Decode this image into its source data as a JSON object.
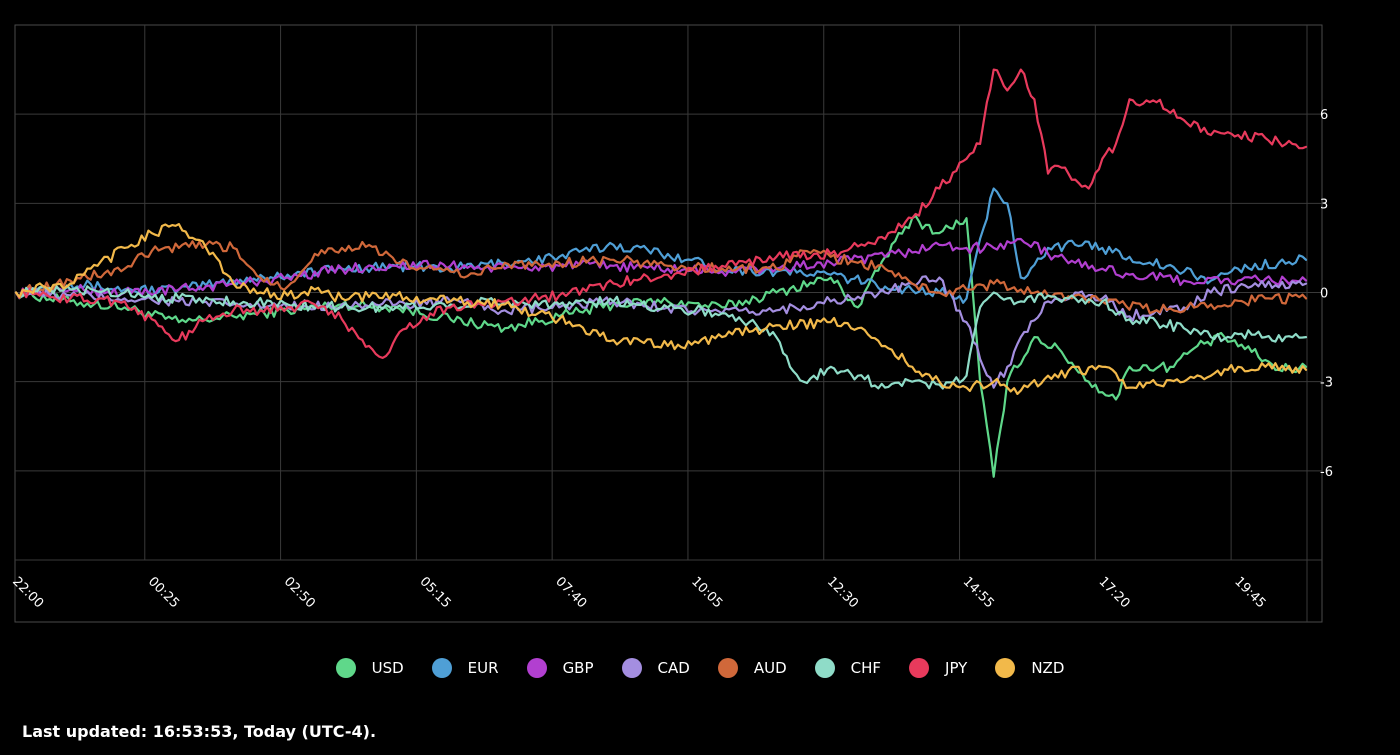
{
  "chart_data": {
    "type": "line",
    "title": "",
    "xlabel": "",
    "ylabel": "",
    "ylim": [
      -9,
      9
    ],
    "yticks": [
      6,
      3,
      0,
      -3,
      -6
    ],
    "ytick_labels": [
      "6",
      "3",
      "0",
      "-3",
      "-6"
    ],
    "xlim": [
      0,
      95
    ],
    "x_tick_positions": [
      0,
      10,
      20,
      30,
      40,
      50,
      60,
      70,
      80,
      90
    ],
    "categories": [
      "22:00",
      "00:25",
      "02:50",
      "05:15",
      "07:40",
      "10:05",
      "12:30",
      "14:55",
      "17:20",
      "19:45"
    ],
    "legend_position": "bottom-center",
    "series": [
      {
        "name": "USD",
        "color": "#5fd88a",
        "anchors": [
          [
            0,
            0
          ],
          [
            4,
            -0.3
          ],
          [
            8,
            -0.5
          ],
          [
            12,
            -1.0
          ],
          [
            16,
            -0.8
          ],
          [
            20,
            -0.6
          ],
          [
            24,
            -0.4
          ],
          [
            28,
            -0.5
          ],
          [
            32,
            -0.9
          ],
          [
            36,
            -1.2
          ],
          [
            40,
            -0.8
          ],
          [
            44,
            -0.4
          ],
          [
            48,
            -0.3
          ],
          [
            52,
            -0.5
          ],
          [
            56,
            0.0
          ],
          [
            60,
            0.5
          ],
          [
            62,
            -0.5
          ],
          [
            64,
            1.2
          ],
          [
            66,
            2.5
          ],
          [
            68,
            2.0
          ],
          [
            70,
            2.5
          ],
          [
            71,
            -3.0
          ],
          [
            72,
            -6.2
          ],
          [
            73,
            -3.0
          ],
          [
            75,
            -1.5
          ],
          [
            77,
            -2.0
          ],
          [
            79,
            -3.0
          ],
          [
            81,
            -3.6
          ],
          [
            82,
            -2.5
          ],
          [
            85,
            -2.5
          ],
          [
            87,
            -1.8
          ],
          [
            89,
            -1.5
          ],
          [
            91,
            -2.0
          ],
          [
            93,
            -2.6
          ],
          [
            95,
            -2.5
          ]
        ]
      },
      {
        "name": "EUR",
        "color": "#4f9fd6",
        "anchors": [
          [
            0,
            0
          ],
          [
            4,
            0.3
          ],
          [
            8,
            0.1
          ],
          [
            12,
            0.1
          ],
          [
            16,
            0.4
          ],
          [
            20,
            0.6
          ],
          [
            24,
            0.8
          ],
          [
            28,
            0.9
          ],
          [
            32,
            0.8
          ],
          [
            36,
            1.0
          ],
          [
            40,
            1.2
          ],
          [
            44,
            1.6
          ],
          [
            48,
            1.3
          ],
          [
            52,
            0.8
          ],
          [
            56,
            0.7
          ],
          [
            60,
            0.6
          ],
          [
            64,
            0.2
          ],
          [
            68,
            0.0
          ],
          [
            70,
            -0.2
          ],
          [
            72,
            3.5
          ],
          [
            73,
            3.0
          ],
          [
            74,
            0.5
          ],
          [
            76,
            1.5
          ],
          [
            78,
            1.6
          ],
          [
            80,
            1.5
          ],
          [
            82,
            1.2
          ],
          [
            86,
            0.7
          ],
          [
            88,
            0.4
          ],
          [
            90,
            0.8
          ],
          [
            93,
            1.0
          ],
          [
            95,
            1.1
          ]
        ]
      },
      {
        "name": "GBP",
        "color": "#b23fd0",
        "anchors": [
          [
            0,
            0
          ],
          [
            4,
            0.1
          ],
          [
            8,
            0.0
          ],
          [
            12,
            0.1
          ],
          [
            16,
            0.3
          ],
          [
            20,
            0.5
          ],
          [
            24,
            0.8
          ],
          [
            28,
            0.9
          ],
          [
            32,
            0.9
          ],
          [
            36,
            0.8
          ],
          [
            40,
            0.9
          ],
          [
            44,
            0.9
          ],
          [
            48,
            0.8
          ],
          [
            52,
            0.7
          ],
          [
            56,
            0.8
          ],
          [
            60,
            1.0
          ],
          [
            64,
            1.2
          ],
          [
            68,
            1.6
          ],
          [
            70,
            1.5
          ],
          [
            72,
            1.5
          ],
          [
            74,
            1.8
          ],
          [
            76,
            1.3
          ],
          [
            78,
            1.0
          ],
          [
            80,
            0.8
          ],
          [
            82,
            0.6
          ],
          [
            86,
            0.4
          ],
          [
            90,
            0.4
          ],
          [
            95,
            0.4
          ]
        ]
      },
      {
        "name": "CAD",
        "color": "#a48ee0",
        "anchors": [
          [
            0,
            0
          ],
          [
            4,
            -0.1
          ],
          [
            8,
            -0.2
          ],
          [
            12,
            -0.3
          ],
          [
            16,
            -0.4
          ],
          [
            20,
            -0.5
          ],
          [
            24,
            -0.4
          ],
          [
            28,
            -0.4
          ],
          [
            32,
            -0.3
          ],
          [
            36,
            -0.6
          ],
          [
            40,
            -0.5
          ],
          [
            44,
            -0.3
          ],
          [
            48,
            -0.5
          ],
          [
            52,
            -0.7
          ],
          [
            56,
            -0.6
          ],
          [
            60,
            -0.3
          ],
          [
            64,
            0.0
          ],
          [
            66,
            0.3
          ],
          [
            68,
            0.5
          ],
          [
            70,
            -1.0
          ],
          [
            72,
            -3.2
          ],
          [
            73,
            -2.5
          ],
          [
            74,
            -1.5
          ],
          [
            76,
            -0.3
          ],
          [
            78,
            0.0
          ],
          [
            80,
            -0.2
          ],
          [
            82,
            -0.8
          ],
          [
            84,
            -0.6
          ],
          [
            86,
            -0.5
          ],
          [
            88,
            0.0
          ],
          [
            90,
            0.2
          ],
          [
            95,
            0.3
          ]
        ]
      },
      {
        "name": "AUD",
        "color": "#d0683a",
        "anchors": [
          [
            0,
            0
          ],
          [
            4,
            0.4
          ],
          [
            8,
            0.8
          ],
          [
            10,
            1.4
          ],
          [
            12,
            1.5
          ],
          [
            14,
            1.6
          ],
          [
            16,
            1.5
          ],
          [
            18,
            0.5
          ],
          [
            20,
            0.2
          ],
          [
            22,
            1.3
          ],
          [
            24,
            1.5
          ],
          [
            26,
            1.6
          ],
          [
            28,
            1.0
          ],
          [
            30,
            0.8
          ],
          [
            32,
            0.7
          ],
          [
            34,
            0.6
          ],
          [
            36,
            1.0
          ],
          [
            38,
            0.9
          ],
          [
            40,
            1.0
          ],
          [
            44,
            1.1
          ],
          [
            48,
            0.9
          ],
          [
            52,
            0.8
          ],
          [
            56,
            0.8
          ],
          [
            58,
            1.4
          ],
          [
            60,
            1.2
          ],
          [
            62,
            1.0
          ],
          [
            64,
            0.8
          ],
          [
            66,
            0.3
          ],
          [
            68,
            0.0
          ],
          [
            70,
            0.1
          ],
          [
            72,
            0.3
          ],
          [
            74,
            0.1
          ],
          [
            76,
            -0.1
          ],
          [
            78,
            -0.1
          ],
          [
            80,
            -0.3
          ],
          [
            84,
            -0.6
          ],
          [
            88,
            -0.4
          ],
          [
            92,
            -0.2
          ],
          [
            95,
            -0.2
          ]
        ]
      },
      {
        "name": "CHF",
        "color": "#8fdcc8",
        "anchors": [
          [
            0,
            0
          ],
          [
            4,
            0.1
          ],
          [
            8,
            0.0
          ],
          [
            12,
            -0.2
          ],
          [
            16,
            -0.3
          ],
          [
            20,
            -0.4
          ],
          [
            24,
            -0.5
          ],
          [
            28,
            -0.5
          ],
          [
            32,
            -0.4
          ],
          [
            36,
            -0.3
          ],
          [
            40,
            -0.4
          ],
          [
            44,
            -0.3
          ],
          [
            48,
            -0.5
          ],
          [
            52,
            -0.7
          ],
          [
            54,
            -1.0
          ],
          [
            56,
            -1.5
          ],
          [
            57,
            -2.5
          ],
          [
            58,
            -3.0
          ],
          [
            60,
            -2.5
          ],
          [
            62,
            -2.8
          ],
          [
            64,
            -3.2
          ],
          [
            66,
            -3.0
          ],
          [
            68,
            -3.1
          ],
          [
            70,
            -2.8
          ],
          [
            71,
            -0.5
          ],
          [
            72,
            0.0
          ],
          [
            73,
            -0.2
          ],
          [
            74,
            -0.3
          ],
          [
            76,
            -0.1
          ],
          [
            78,
            -0.2
          ],
          [
            80,
            -0.3
          ],
          [
            82,
            -0.9
          ],
          [
            84,
            -1.0
          ],
          [
            86,
            -1.2
          ],
          [
            88,
            -1.5
          ],
          [
            90,
            -1.4
          ],
          [
            92,
            -1.5
          ],
          [
            95,
            -1.5
          ]
        ]
      },
      {
        "name": "JPY",
        "color": "#e83a5c",
        "anchors": [
          [
            0,
            0
          ],
          [
            4,
            -0.2
          ],
          [
            8,
            -0.3
          ],
          [
            12,
            -1.6
          ],
          [
            14,
            -0.9
          ],
          [
            16,
            -0.6
          ],
          [
            18,
            -0.6
          ],
          [
            20,
            -0.5
          ],
          [
            22,
            -0.4
          ],
          [
            24,
            -0.9
          ],
          [
            26,
            -1.8
          ],
          [
            27,
            -2.2
          ],
          [
            28,
            -1.5
          ],
          [
            30,
            -0.8
          ],
          [
            32,
            -0.5
          ],
          [
            36,
            -0.3
          ],
          [
            40,
            -0.1
          ],
          [
            44,
            0.3
          ],
          [
            48,
            0.6
          ],
          [
            52,
            0.9
          ],
          [
            56,
            1.2
          ],
          [
            60,
            1.3
          ],
          [
            64,
            1.8
          ],
          [
            66,
            2.5
          ],
          [
            68,
            3.5
          ],
          [
            70,
            4.5
          ],
          [
            71,
            5.0
          ],
          [
            72,
            7.5
          ],
          [
            73,
            6.8
          ],
          [
            74,
            7.5
          ],
          [
            75,
            6.5
          ],
          [
            76,
            4.0
          ],
          [
            77,
            4.2
          ],
          [
            78,
            3.8
          ],
          [
            79,
            3.5
          ],
          [
            80,
            4.5
          ],
          [
            81,
            5.0
          ],
          [
            82,
            6.5
          ],
          [
            84,
            6.4
          ],
          [
            86,
            5.8
          ],
          [
            88,
            5.3
          ],
          [
            90,
            5.3
          ],
          [
            92,
            5.2
          ],
          [
            94,
            5.0
          ],
          [
            95,
            4.9
          ]
        ]
      },
      {
        "name": "NZD",
        "color": "#f2b94a",
        "anchors": [
          [
            0,
            0
          ],
          [
            4,
            0.3
          ],
          [
            6,
            0.9
          ],
          [
            8,
            1.5
          ],
          [
            10,
            2.0
          ],
          [
            12,
            2.3
          ],
          [
            14,
            1.5
          ],
          [
            16,
            0.3
          ],
          [
            18,
            0.0
          ],
          [
            20,
            -0.1
          ],
          [
            22,
            0.1
          ],
          [
            24,
            -0.2
          ],
          [
            28,
            -0.1
          ],
          [
            32,
            -0.3
          ],
          [
            36,
            -0.4
          ],
          [
            40,
            -0.9
          ],
          [
            44,
            -1.6
          ],
          [
            48,
            -1.8
          ],
          [
            52,
            -1.5
          ],
          [
            56,
            -1.1
          ],
          [
            60,
            -1.0
          ],
          [
            62,
            -1.2
          ],
          [
            64,
            -1.8
          ],
          [
            66,
            -2.5
          ],
          [
            68,
            -3.0
          ],
          [
            70,
            -3.2
          ],
          [
            72,
            -3.0
          ],
          [
            74,
            -3.3
          ],
          [
            76,
            -2.8
          ],
          [
            80,
            -2.5
          ],
          [
            82,
            -3.2
          ],
          [
            84,
            -3.1
          ],
          [
            86,
            -3.0
          ],
          [
            88,
            -2.8
          ],
          [
            90,
            -2.5
          ],
          [
            92,
            -2.5
          ],
          [
            95,
            -2.6
          ]
        ]
      }
    ]
  },
  "legend": [
    {
      "label": "USD",
      "color": "#5fd88a"
    },
    {
      "label": "EUR",
      "color": "#4f9fd6"
    },
    {
      "label": "GBP",
      "color": "#b23fd0"
    },
    {
      "label": "CAD",
      "color": "#a48ee0"
    },
    {
      "label": "AUD",
      "color": "#d0683a"
    },
    {
      "label": "CHF",
      "color": "#8fdcc8"
    },
    {
      "label": "JPY",
      "color": "#e83a5c"
    },
    {
      "label": "NZD",
      "color": "#f2b94a"
    }
  ],
  "footer": {
    "last_updated": "Last updated: 16:53:53, Today (UTC-4)."
  }
}
